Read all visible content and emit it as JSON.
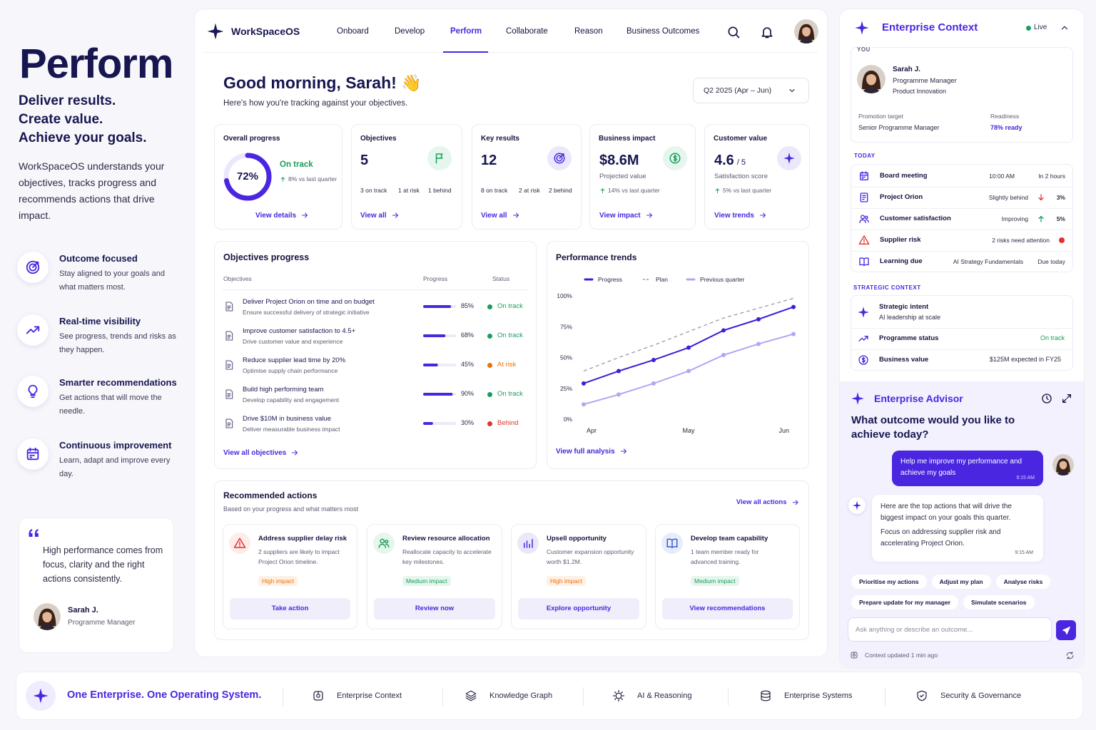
{
  "hero": {
    "title": "Perform",
    "tagline": [
      "Deliver results.",
      "Create value.",
      "Achieve your goals."
    ],
    "description": "WorkSpaceOS understands your objectives, tracks progress and recommends actions that drive impact.",
    "features": [
      {
        "title": "Outcome focused",
        "text": "Stay aligned to your goals and what matters most."
      },
      {
        "title": "Real-time visibility",
        "text": "See progress, trends and risks as they happen."
      },
      {
        "title": "Smarter recommendations",
        "text": "Get actions that will move the needle."
      },
      {
        "title": "Continuous improvement",
        "text": "Learn, adapt and improve every day."
      }
    ],
    "quote": {
      "text": "High performance comes from focus, clarity and the right actions consistently.",
      "name": "Sarah J.",
      "role": "Programme Manager"
    }
  },
  "nav": {
    "brand": "WorkSpaceOS",
    "items": [
      "Onboard",
      "Develop",
      "Perform",
      "Collaborate",
      "Reason",
      "Business Outcomes"
    ],
    "active": 2
  },
  "greeting": {
    "title": "Good morning, Sarah! 👋",
    "subtitle": "Here's how you're tracking against your objectives.",
    "period": "Q2 2025 (Apr – Jun)"
  },
  "kpis": [
    {
      "title": "Overall progress",
      "value": 72,
      "value_label": "72%",
      "status": "On track",
      "change": "8% vs last quarter",
      "link": "View details"
    },
    {
      "title": "Objectives",
      "value": 5,
      "stats": [
        "3 on track",
        "1 at risk",
        "1 behind"
      ],
      "link": "View all"
    },
    {
      "title": "Key results",
      "value": 12,
      "stats": [
        "8 on track",
        "2 at risk",
        "2 behind"
      ],
      "link": "View all"
    },
    {
      "title": "Business impact",
      "value": "$8.6M",
      "caption": "Projected value",
      "change": "14% vs last quarter",
      "link": "View impact"
    },
    {
      "title": "Customer value",
      "value": 4.6,
      "suffix": "/ 5",
      "caption": "Satisfaction score",
      "change": "5% vs last quarter",
      "link": "View trends"
    }
  ],
  "objectives": {
    "title": "Objectives progress",
    "headers": [
      "Objectives",
      "Progress",
      "Status"
    ],
    "rows": [
      {
        "name": "Deliver Project Orion on time and on budget",
        "desc": "Ensure successful delivery of strategic initiative",
        "progress": 85,
        "progress_label": "85%",
        "status": "On track",
        "color": "#1a9e5b"
      },
      {
        "name": "Improve customer satisfaction to 4.5+",
        "desc": "Drive customer value and experience",
        "progress": 68,
        "progress_label": "68%",
        "status": "On track",
        "color": "#1a9e5b"
      },
      {
        "name": "Reduce supplier lead time by 20%",
        "desc": "Optimise supply chain performance",
        "progress": 45,
        "progress_label": "45%",
        "status": "At risk",
        "color": "#e8730c"
      },
      {
        "name": "Build high performing team",
        "desc": "Develop capability and engagement",
        "progress": 90,
        "progress_label": "90%",
        "status": "On track",
        "color": "#1a9e5b"
      },
      {
        "name": "Drive $10M in business value",
        "desc": "Deliver measurable business impact",
        "progress": 30,
        "progress_label": "30%",
        "status": "Behind",
        "color": "#e0322f"
      }
    ],
    "link": "View all objectives"
  },
  "chart_data": {
    "type": "line",
    "title": "Performance trends",
    "categories": [
      "Apr",
      null,
      null,
      "May",
      null,
      null,
      "Jun"
    ],
    "series": [
      {
        "name": "Progress",
        "color": "#3b1fd6",
        "markers": true,
        "dash": false,
        "values": [
          29,
          39,
          48,
          58,
          72,
          81,
          91
        ]
      },
      {
        "name": "Plan",
        "color": "#9a9aaa",
        "markers": false,
        "dash": true,
        "values": [
          39,
          50,
          60,
          71,
          82,
          90,
          98
        ]
      },
      {
        "name": "Previous quarter",
        "color": "#b6a4f4",
        "markers": true,
        "dash": false,
        "values": [
          12,
          20,
          29,
          39,
          52,
          61,
          69
        ]
      }
    ],
    "ylim": [
      0,
      100
    ],
    "yticks": [
      {
        "value": 0,
        "label": "0%"
      },
      {
        "value": 25,
        "label": "25%"
      },
      {
        "value": 50,
        "label": "50%"
      },
      {
        "value": 75,
        "label": "75%"
      },
      {
        "value": 100,
        "label": "100%"
      }
    ],
    "grid": false,
    "link": "View full analysis"
  },
  "actions": {
    "title": "Recommended actions",
    "subtitle": "Based on your progress and what matters most",
    "link": "View all actions",
    "cards": [
      {
        "title": "Address supplier delay risk",
        "text": "2 suppliers are likely to impact Project Orion timeline.",
        "tag": "High impact",
        "button": "Take action"
      },
      {
        "title": "Review resource allocation",
        "text": "Reallocate capacity to accelerate key milestones.",
        "tag": "Medium impact",
        "button": "Review now"
      },
      {
        "title": "Upsell opportunity",
        "text": "Customer expansion opportunity worth $1.2M.",
        "tag": "High impact",
        "button": "Explore opportunity"
      },
      {
        "title": "Develop team capability",
        "text": "1 team member ready for advanced training.",
        "tag": "Medium impact",
        "button": "View recommendations"
      }
    ]
  },
  "context": {
    "title": "Enterprise Context",
    "live": "Live",
    "you_label": "YOU",
    "person": {
      "name": "Sarah J.",
      "role": "Programme Manager",
      "unit": "Product Innovation"
    },
    "promotion_label": "Promotion target",
    "promotion": "Senior Programme Manager",
    "readiness_label": "Readiness",
    "readiness": "78% ready",
    "today_label": "TODAY",
    "today": [
      {
        "title": "Board meeting",
        "detail": "10:00 AM",
        "extra": "In 2 hours"
      },
      {
        "title": "Project Orion",
        "detail": "Slightly behind",
        "indicator": "down",
        "extra": "3%"
      },
      {
        "title": "Customer satisfaction",
        "detail": "Improving",
        "indicator": "up",
        "extra": "5%"
      },
      {
        "title": "Supplier risk",
        "detail": "2 risks need attention",
        "indicator": "dot"
      },
      {
        "title": "Learning due",
        "detail": "AI Strategy Fundamentals",
        "extra": "Due today"
      }
    ],
    "strategic_label": "STRATEGIC CONTEXT",
    "strategic": [
      {
        "title": "Strategic intent",
        "sub": "AI leadership at scale"
      },
      {
        "title": "Programme status",
        "value": "On track"
      },
      {
        "title": "Business value",
        "value": "$125M expected in FY25"
      }
    ]
  },
  "advisor": {
    "title": "Enterprise Advisor",
    "question": "What outcome would you like to achieve today?",
    "user_message": "Help me improve my performance and achieve my goals",
    "user_time": "9:15 AM",
    "bot_message": [
      "Here are the top actions that will drive the biggest impact on your goals this quarter.",
      "Focus on addressing supplier risk and accelerating Project Orion."
    ],
    "bot_time": "9:15 AM",
    "chips": [
      "Prioritise my actions",
      "Adjust my plan",
      "Analyse risks",
      "Prepare update for my manager",
      "Simulate scenarios"
    ],
    "placeholder": "Ask anything or describe an outcome...",
    "status": "Context updated 1 min ago"
  },
  "footer": {
    "tagline": "One Enterprise. One Operating System.",
    "items": [
      "Enterprise Context",
      "Knowledge Graph",
      "AI & Reasoning",
      "Enterprise Systems",
      "Security & Governance"
    ]
  }
}
